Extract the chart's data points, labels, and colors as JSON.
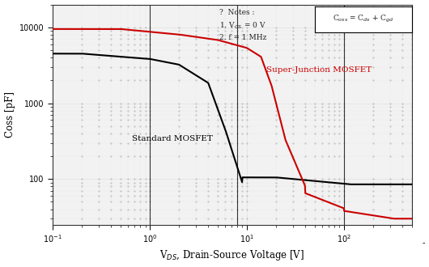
{
  "title": "",
  "xlabel": "V$_{DS}$, Drain-Source Voltage [V]",
  "ylabel": "Coss [pF]",
  "xlim": [
    0.1,
    500
  ],
  "ylim": [
    25,
    20000
  ],
  "vlines": [
    1.0,
    8.0,
    100.0
  ],
  "bg_color": "#ffffff",
  "plot_bg_color": "#f0f0f0",
  "standard_color": "#000000",
  "sj_color": "#cc0000",
  "notes_text": "?  Notes :\n1. V$_{GS}$ = 0 V\n2. f = 1 MHz",
  "legend_formula": "C$_{oss}$ = C$_{ds}$ + C$_{gd}$",
  "standard_label": "Standard MOSFET",
  "sj_label": "Super-Junction MOSFET",
  "dotgrid_color": "#999999"
}
